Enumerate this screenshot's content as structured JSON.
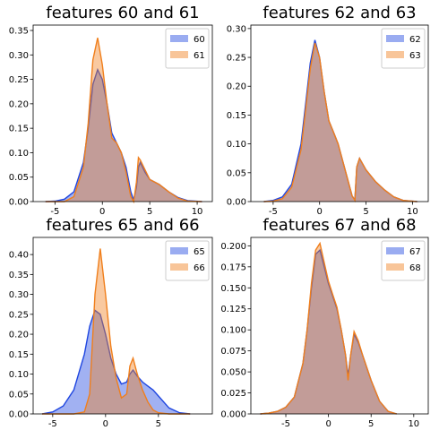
{
  "chart_data": [
    {
      "type": "area",
      "title": "features 60 and 61",
      "legend": "upper right",
      "xlim": [
        -7.3,
        11.6
      ],
      "xticks": [
        -5,
        0,
        5,
        10
      ],
      "ylim": [
        0,
        0.361
      ],
      "yticks": [
        {
          "value": 0,
          "label": "0.00"
        },
        {
          "value": 0.05,
          "label": "0.05"
        },
        {
          "value": 0.1,
          "label": "0.10"
        },
        {
          "value": 0.15,
          "label": "0.15"
        },
        {
          "value": 0.2,
          "label": "0.20"
        },
        {
          "value": 0.25,
          "label": "0.25"
        },
        {
          "value": 0.3,
          "label": "0.30"
        },
        {
          "value": 0.35,
          "label": "0.35"
        }
      ],
      "x": [
        -6,
        -5,
        -4,
        -3,
        -2,
        -1.5,
        -1,
        -0.5,
        0,
        0.5,
        1,
        1.5,
        2,
        2.5,
        3,
        3.3,
        3.6,
        3.8,
        4,
        4.5,
        5,
        6,
        7,
        8,
        9,
        10.5
      ],
      "series": [
        {
          "name": "60",
          "color": "#1f46e0",
          "values": [
            0,
            0.001,
            0.005,
            0.02,
            0.08,
            0.15,
            0.24,
            0.27,
            0.25,
            0.2,
            0.14,
            0.12,
            0.1,
            0.07,
            0.02,
            0.003,
            0.03,
            0.07,
            0.08,
            0.06,
            0.045,
            0.035,
            0.02,
            0.008,
            0.002,
            0
          ]
        },
        {
          "name": "61",
          "color": "#f07f1c",
          "values": [
            0,
            0,
            0,
            0.01,
            0.07,
            0.16,
            0.29,
            0.335,
            0.28,
            0.2,
            0.13,
            0.12,
            0.1,
            0.06,
            0.01,
            0,
            0.04,
            0.09,
            0.085,
            0.065,
            0.045,
            0.035,
            0.02,
            0.007,
            0.001,
            0
          ]
        }
      ]
    },
    {
      "type": "area",
      "title": "features 62 and 63",
      "legend": "upper right",
      "xlim": [
        -7.4,
        11.7
      ],
      "xticks": [
        -5,
        0,
        5,
        10
      ],
      "ylim": [
        0,
        0.306
      ],
      "yticks": [
        {
          "value": 0,
          "label": "0.00"
        },
        {
          "value": 0.05,
          "label": "0.05"
        },
        {
          "value": 0.1,
          "label": "0.10"
        },
        {
          "value": 0.15,
          "label": "0.15"
        },
        {
          "value": 0.2,
          "label": "0.20"
        },
        {
          "value": 0.25,
          "label": "0.25"
        },
        {
          "value": 0.3,
          "label": "0.30"
        }
      ],
      "x": [
        -6,
        -5,
        -4,
        -3,
        -2,
        -1.5,
        -1,
        -0.5,
        0,
        0.5,
        1,
        1.5,
        2,
        2.5,
        3,
        3.5,
        3.8,
        4,
        4.3,
        5,
        6,
        7,
        8,
        9,
        10.5
      ],
      "series": [
        {
          "name": "62",
          "color": "#1f46e0",
          "values": [
            0,
            0.002,
            0.008,
            0.03,
            0.1,
            0.17,
            0.24,
            0.28,
            0.25,
            0.19,
            0.14,
            0.12,
            0.1,
            0.07,
            0.04,
            0.01,
            0.003,
            0.06,
            0.075,
            0.055,
            0.035,
            0.02,
            0.008,
            0.002,
            0
          ]
        },
        {
          "name": "63",
          "color": "#f07f1c",
          "values": [
            0,
            0.001,
            0.005,
            0.025,
            0.09,
            0.16,
            0.23,
            0.275,
            0.25,
            0.19,
            0.14,
            0.12,
            0.1,
            0.07,
            0.04,
            0.01,
            0.002,
            0.06,
            0.075,
            0.055,
            0.035,
            0.02,
            0.008,
            0.002,
            0
          ]
        }
      ]
    },
    {
      "type": "area",
      "title": "features 65 and 66",
      "legend": "upper right",
      "xlim": [
        -6.85,
        10.1
      ],
      "xticks": [
        -5,
        0,
        5
      ],
      "ylim": [
        0,
        0.443
      ],
      "yticks": [
        {
          "value": 0,
          "label": "0.00"
        },
        {
          "value": 0.05,
          "label": "0.05"
        },
        {
          "value": 0.1,
          "label": "0.10"
        },
        {
          "value": 0.15,
          "label": "0.15"
        },
        {
          "value": 0.2,
          "label": "0.20"
        },
        {
          "value": 0.25,
          "label": "0.25"
        },
        {
          "value": 0.3,
          "label": "0.30"
        },
        {
          "value": 0.35,
          "label": "0.35"
        },
        {
          "value": 0.4,
          "label": "0.40"
        }
      ],
      "x": [
        -6,
        -5,
        -4,
        -3,
        -2,
        -1.5,
        -1,
        -0.5,
        0,
        0.5,
        1,
        1.5,
        2,
        2.3,
        2.6,
        3,
        3.5,
        4,
        4.5,
        5,
        6,
        7,
        8
      ],
      "series": [
        {
          "name": "65",
          "color": "#1f46e0",
          "values": [
            0,
            0.005,
            0.02,
            0.06,
            0.15,
            0.22,
            0.26,
            0.25,
            0.2,
            0.14,
            0.1,
            0.075,
            0.08,
            0.1,
            0.11,
            0.095,
            0.08,
            0.07,
            0.06,
            0.045,
            0.015,
            0.003,
            0
          ]
        },
        {
          "name": "66",
          "color": "#f07f1c",
          "values": [
            0,
            0,
            0,
            0,
            0.005,
            0.05,
            0.3,
            0.415,
            0.3,
            0.17,
            0.09,
            0.04,
            0.05,
            0.12,
            0.14,
            0.1,
            0.06,
            0.03,
            0.01,
            0.003,
            0,
            0,
            0
          ]
        }
      ]
    },
    {
      "type": "area",
      "title": "features 67 and 68",
      "legend": "upper right",
      "xlim": [
        -9.1,
        11.7
      ],
      "xticks": [
        -5,
        0,
        5,
        10
      ],
      "ylim": [
        0,
        0.21
      ],
      "yticks": [
        {
          "value": 0,
          "label": "0.000"
        },
        {
          "value": 0.025,
          "label": "0.025"
        },
        {
          "value": 0.05,
          "label": "0.050"
        },
        {
          "value": 0.075,
          "label": "0.075"
        },
        {
          "value": 0.1,
          "label": "0.100"
        },
        {
          "value": 0.125,
          "label": "0.125"
        },
        {
          "value": 0.15,
          "label": "0.150"
        },
        {
          "value": 0.175,
          "label": "0.175"
        },
        {
          "value": 0.2,
          "label": "0.200"
        }
      ],
      "x": [
        -8,
        -7,
        -6,
        -5,
        -4,
        -3,
        -2.5,
        -2,
        -1.5,
        -1,
        -0.5,
        0,
        0.5,
        1,
        1.5,
        2,
        2.3,
        2.6,
        3,
        3.5,
        4,
        5,
        6,
        7,
        8
      ],
      "series": [
        {
          "name": "67",
          "color": "#1f46e0",
          "values": [
            0,
            0.001,
            0.003,
            0.008,
            0.02,
            0.06,
            0.1,
            0.15,
            0.19,
            0.195,
            0.175,
            0.155,
            0.14,
            0.125,
            0.1,
            0.07,
            0.045,
            0.07,
            0.095,
            0.085,
            0.07,
            0.04,
            0.015,
            0.003,
            0
          ]
        },
        {
          "name": "68",
          "color": "#f07f1c",
          "values": [
            0,
            0.001,
            0.003,
            0.008,
            0.02,
            0.06,
            0.1,
            0.155,
            0.195,
            0.203,
            0.18,
            0.158,
            0.142,
            0.127,
            0.1,
            0.07,
            0.04,
            0.07,
            0.098,
            0.087,
            0.07,
            0.04,
            0.015,
            0.003,
            0
          ]
        }
      ]
    }
  ]
}
